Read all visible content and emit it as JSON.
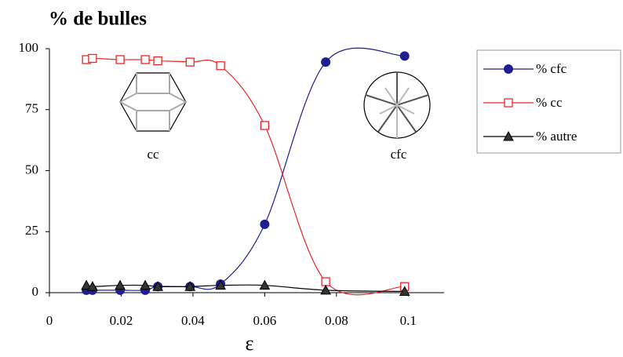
{
  "chart_data": {
    "type": "line",
    "title": "% de bulles",
    "x_label": "ε",
    "x": [
      0.0103,
      0.012,
      0.0197,
      0.0267,
      0.0302,
      0.0392,
      0.0477,
      0.06,
      0.077,
      0.099
    ],
    "series": [
      {
        "name": "% cfc",
        "color": "#1f1f8f",
        "marker": "circle",
        "values": [
          1,
          1,
          1,
          1,
          2.5,
          2.5,
          3.5,
          28,
          94.5,
          97
        ]
      },
      {
        "name": "% cc",
        "color": "#e8262a",
        "marker": "square",
        "values": [
          95.5,
          96,
          95.5,
          95.5,
          95,
          94.5,
          93,
          68.5,
          4.5,
          2.5
        ]
      },
      {
        "name": "% autre",
        "color": "#000000",
        "marker": "triangle",
        "values": [
          3,
          2.5,
          3,
          3,
          2.5,
          2.5,
          3,
          3,
          1,
          0.5
        ]
      }
    ],
    "annotations": [
      "cc",
      "cfc"
    ],
    "xlim": [
      0,
      0.11
    ],
    "xticks": [
      0,
      0.02,
      0.04,
      0.06,
      0.08,
      0.1
    ],
    "ylim": [
      0,
      100
    ],
    "yticks": [
      0,
      25,
      50,
      75,
      100
    ],
    "grid": false,
    "legend": "right"
  }
}
